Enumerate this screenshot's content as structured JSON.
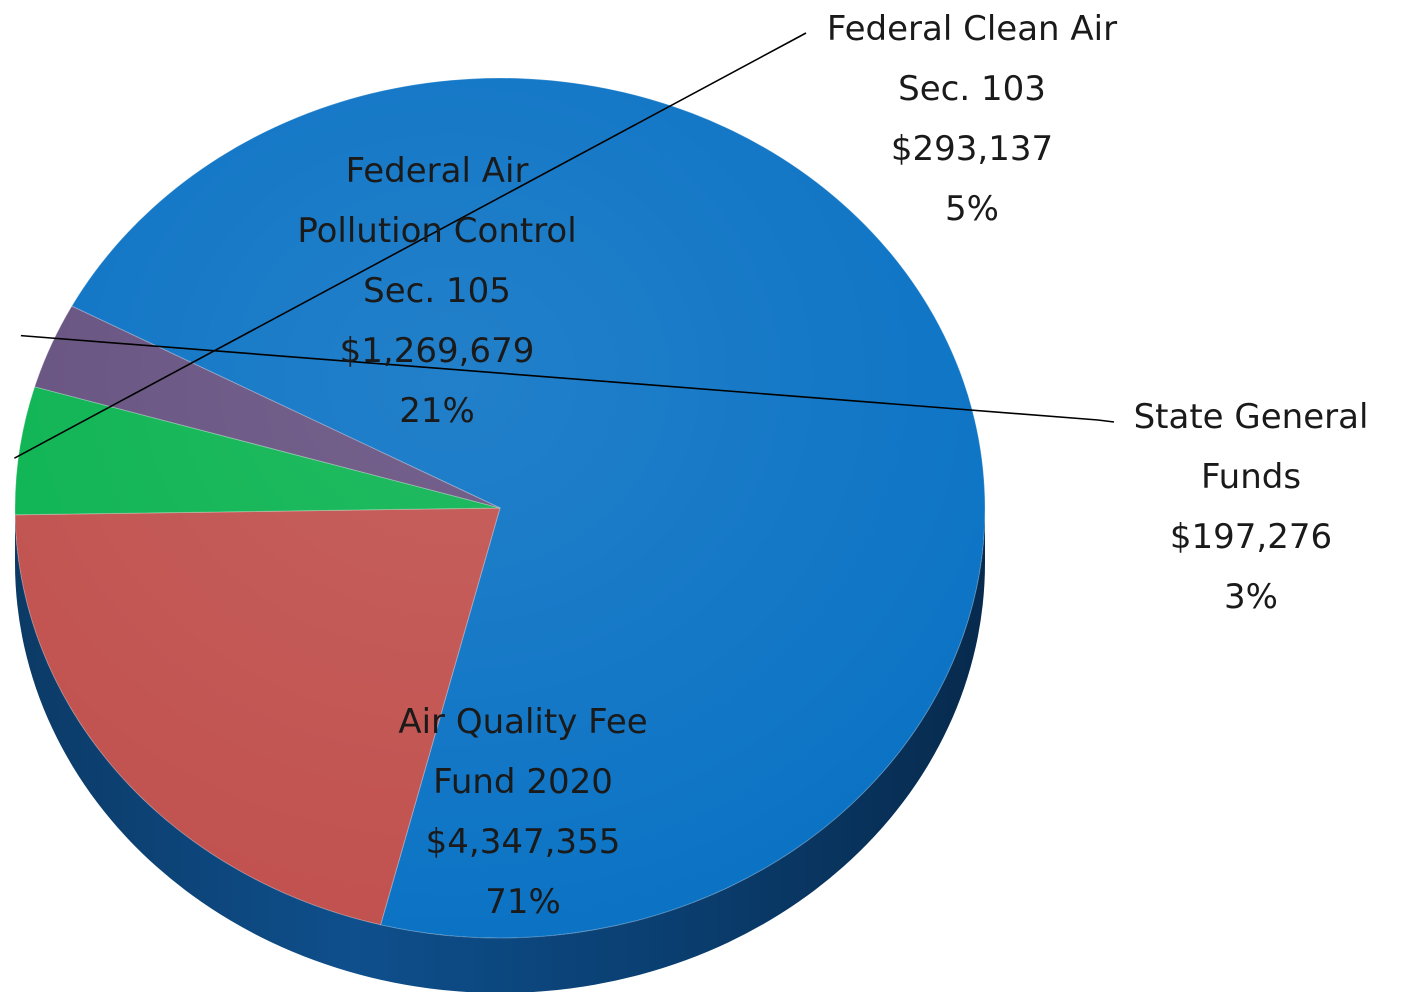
{
  "chart_data": {
    "type": "pie",
    "style": "3d",
    "categories": [
      "Air Quality Fee Fund 2020",
      "Federal Air Pollution Control Sec. 105",
      "Federal Clean Air Sec. 103",
      "State General Funds"
    ],
    "values": [
      4347355,
      1269679,
      293137,
      197276
    ],
    "percents": [
      71,
      21,
      5,
      3
    ],
    "colors": [
      "#0a72c4",
      "#c0504d",
      "#0ab350",
      "#65507f"
    ],
    "labels": [
      [
        "Air Quality Fee",
        "Fund 2020",
        "$4,347,355",
        "71%"
      ],
      [
        "Federal Air",
        "Pollution Control",
        "Sec. 105",
        "$1,269,679",
        "21%"
      ],
      [
        "Federal Clean Air",
        "Sec. 103",
        "$293,137",
        "5%"
      ],
      [
        "State General",
        "Funds",
        "$197,276",
        "3%"
      ]
    ]
  }
}
